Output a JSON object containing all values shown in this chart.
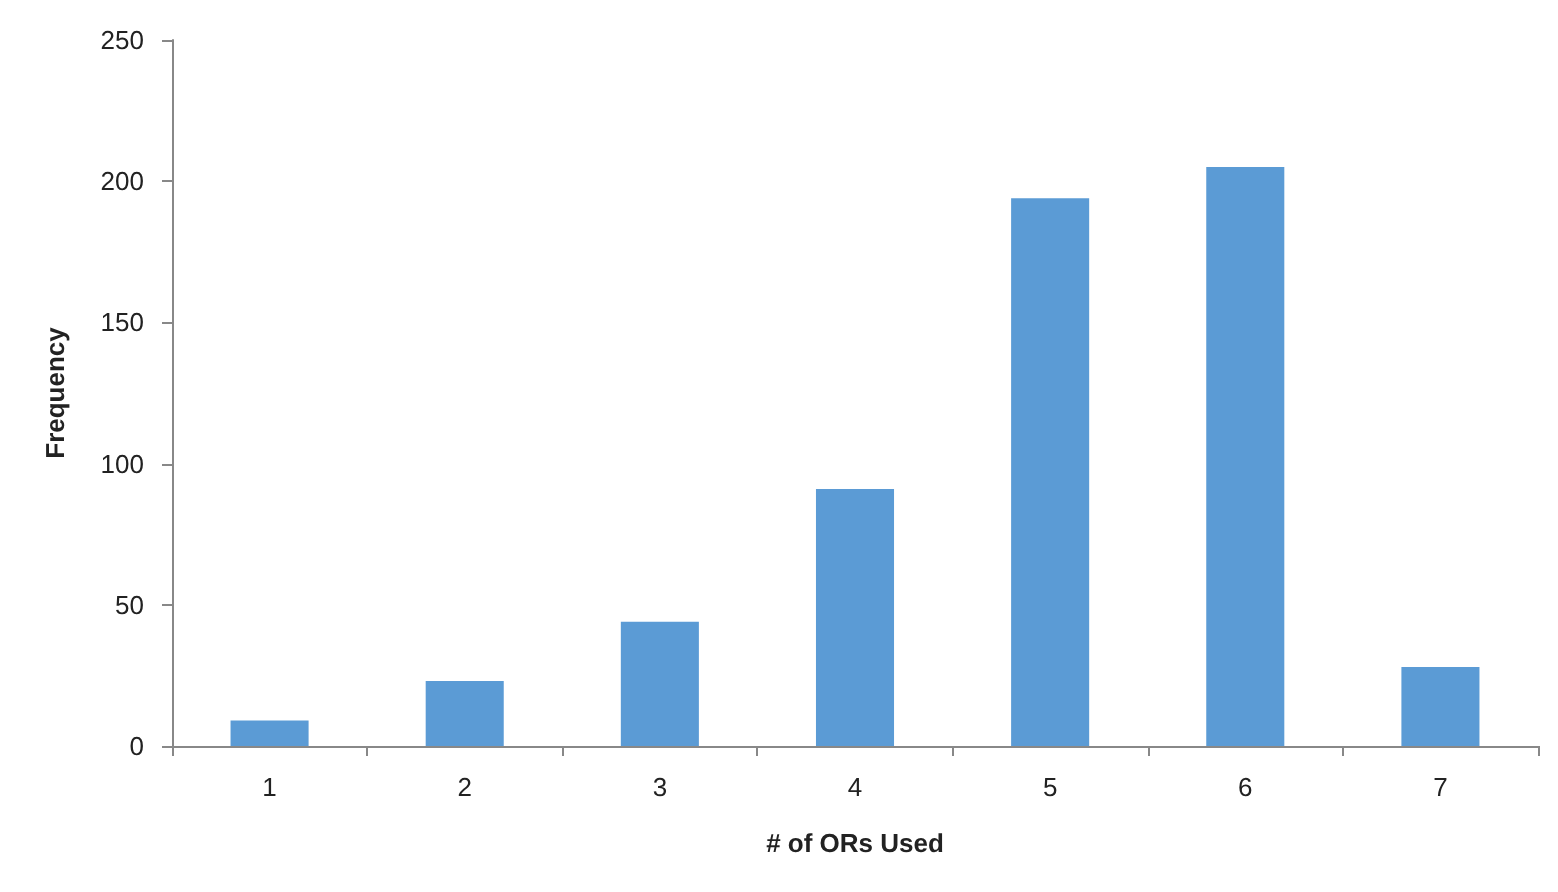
{
  "chart_data": {
    "type": "bar",
    "xlabel": "# of ORs Used",
    "ylabel": "Frequency",
    "categories": [
      "1",
      "2",
      "3",
      "4",
      "5",
      "6",
      "7"
    ],
    "values": [
      9,
      23,
      44,
      91,
      194,
      205,
      28
    ],
    "color": "#5b9bd5",
    "ylim": [
      0,
      250
    ],
    "yticks": [
      0,
      50,
      100,
      150,
      200,
      250
    ],
    "grid": false
  }
}
